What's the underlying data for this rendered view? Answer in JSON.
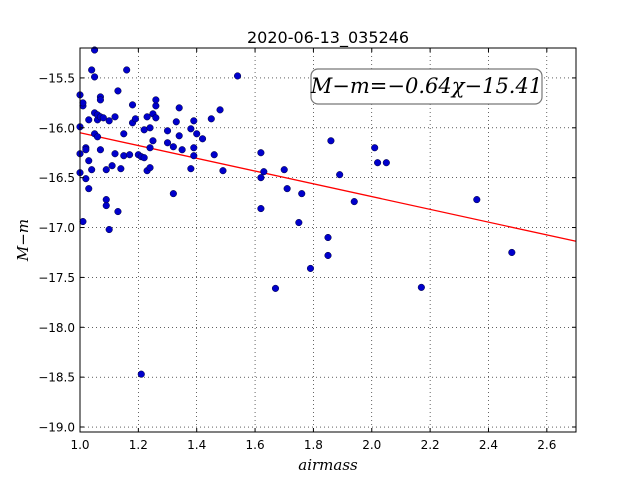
{
  "chart_data": {
    "type": "scatter",
    "title": "2020-06-13_035246",
    "xlabel": "airmass",
    "ylabel": "M−m",
    "xlim": [
      1.0,
      2.7
    ],
    "ylim": [
      -19.05,
      -15.2
    ],
    "x_ticks": [
      1.0,
      1.2,
      1.4,
      1.6,
      1.8,
      2.0,
      2.2,
      2.4,
      2.6
    ],
    "x_tick_labels": [
      "1.0",
      "1.2",
      "1.4",
      "1.6",
      "1.8",
      "2.0",
      "2.2",
      "2.4",
      "2.6"
    ],
    "y_ticks": [
      -15.5,
      -16.0,
      -16.5,
      -17.0,
      -17.5,
      -18.0,
      -18.5,
      -19.0
    ],
    "y_tick_labels": [
      "−15.5",
      "−16.0",
      "−16.5",
      "−17.0",
      "−17.5",
      "−18.0",
      "−18.5",
      "−19.0"
    ],
    "grid": true,
    "fit_line": {
      "slope": -0.64,
      "intercept": -15.41,
      "color": "#ff0000"
    },
    "annotation": "M−m=−0.64χ−15.41",
    "marker_color": "#0000cc",
    "points": [
      {
        "x": 1.0,
        "y": -15.67
      },
      {
        "x": 1.0,
        "y": -15.99
      },
      {
        "x": 1.0,
        "y": -16.26
      },
      {
        "x": 1.0,
        "y": -16.45
      },
      {
        "x": 1.01,
        "y": -15.78
      },
      {
        "x": 1.01,
        "y": -15.75
      },
      {
        "x": 1.01,
        "y": -16.94
      },
      {
        "x": 1.02,
        "y": -16.2
      },
      {
        "x": 1.02,
        "y": -16.22
      },
      {
        "x": 1.02,
        "y": -16.51
      },
      {
        "x": 1.03,
        "y": -16.33
      },
      {
        "x": 1.03,
        "y": -16.61
      },
      {
        "x": 1.03,
        "y": -15.92
      },
      {
        "x": 1.04,
        "y": -15.42
      },
      {
        "x": 1.04,
        "y": -16.42
      },
      {
        "x": 1.05,
        "y": -15.85
      },
      {
        "x": 1.05,
        "y": -16.06
      },
      {
        "x": 1.05,
        "y": -15.22
      },
      {
        "x": 1.05,
        "y": -15.49
      },
      {
        "x": 1.06,
        "y": -15.92
      },
      {
        "x": 1.06,
        "y": -16.09
      },
      {
        "x": 1.06,
        "y": -15.87
      },
      {
        "x": 1.07,
        "y": -15.69
      },
      {
        "x": 1.07,
        "y": -15.72
      },
      {
        "x": 1.07,
        "y": -15.89
      },
      {
        "x": 1.07,
        "y": -16.22
      },
      {
        "x": 1.08,
        "y": -15.9
      },
      {
        "x": 1.09,
        "y": -16.42
      },
      {
        "x": 1.09,
        "y": -16.78
      },
      {
        "x": 1.09,
        "y": -16.72
      },
      {
        "x": 1.1,
        "y": -15.93
      },
      {
        "x": 1.1,
        "y": -17.02
      },
      {
        "x": 1.11,
        "y": -16.38
      },
      {
        "x": 1.12,
        "y": -15.89
      },
      {
        "x": 1.12,
        "y": -16.26
      },
      {
        "x": 1.13,
        "y": -16.84
      },
      {
        "x": 1.13,
        "y": -15.63
      },
      {
        "x": 1.14,
        "y": -16.41
      },
      {
        "x": 1.15,
        "y": -16.06
      },
      {
        "x": 1.15,
        "y": -16.28
      },
      {
        "x": 1.16,
        "y": -15.42
      },
      {
        "x": 1.17,
        "y": -16.27
      },
      {
        "x": 1.18,
        "y": -15.77
      },
      {
        "x": 1.18,
        "y": -15.95
      },
      {
        "x": 1.19,
        "y": -15.91
      },
      {
        "x": 1.2,
        "y": -16.27
      },
      {
        "x": 1.21,
        "y": -18.47
      },
      {
        "x": 1.21,
        "y": -16.29
      },
      {
        "x": 1.22,
        "y": -16.02
      },
      {
        "x": 1.22,
        "y": -16.3
      },
      {
        "x": 1.23,
        "y": -16.43
      },
      {
        "x": 1.23,
        "y": -15.89
      },
      {
        "x": 1.24,
        "y": -16.0
      },
      {
        "x": 1.24,
        "y": -16.2
      },
      {
        "x": 1.24,
        "y": -16.4
      },
      {
        "x": 1.25,
        "y": -15.86
      },
      {
        "x": 1.25,
        "y": -16.13
      },
      {
        "x": 1.26,
        "y": -15.78
      },
      {
        "x": 1.26,
        "y": -15.72
      },
      {
        "x": 1.26,
        "y": -15.9
      },
      {
        "x": 1.3,
        "y": -16.15
      },
      {
        "x": 1.3,
        "y": -16.03
      },
      {
        "x": 1.32,
        "y": -16.66
      },
      {
        "x": 1.32,
        "y": -16.19
      },
      {
        "x": 1.33,
        "y": -15.94
      },
      {
        "x": 1.34,
        "y": -15.8
      },
      {
        "x": 1.34,
        "y": -16.08
      },
      {
        "x": 1.35,
        "y": -16.22
      },
      {
        "x": 1.38,
        "y": -16.41
      },
      {
        "x": 1.38,
        "y": -16.01
      },
      {
        "x": 1.39,
        "y": -15.93
      },
      {
        "x": 1.39,
        "y": -16.2
      },
      {
        "x": 1.39,
        "y": -16.28
      },
      {
        "x": 1.4,
        "y": -16.06
      },
      {
        "x": 1.42,
        "y": -16.11
      },
      {
        "x": 1.45,
        "y": -15.91
      },
      {
        "x": 1.46,
        "y": -16.27
      },
      {
        "x": 1.48,
        "y": -15.82
      },
      {
        "x": 1.49,
        "y": -16.43
      },
      {
        "x": 1.54,
        "y": -15.48
      },
      {
        "x": 1.62,
        "y": -16.25
      },
      {
        "x": 1.62,
        "y": -16.5
      },
      {
        "x": 1.62,
        "y": -16.81
      },
      {
        "x": 1.63,
        "y": -16.44
      },
      {
        "x": 1.67,
        "y": -17.61
      },
      {
        "x": 1.7,
        "y": -16.42
      },
      {
        "x": 1.71,
        "y": -16.61
      },
      {
        "x": 1.75,
        "y": -16.95
      },
      {
        "x": 1.76,
        "y": -16.66
      },
      {
        "x": 1.79,
        "y": -17.41
      },
      {
        "x": 1.85,
        "y": -17.1
      },
      {
        "x": 1.85,
        "y": -17.28
      },
      {
        "x": 1.86,
        "y": -16.13
      },
      {
        "x": 1.89,
        "y": -16.47
      },
      {
        "x": 1.94,
        "y": -16.74
      },
      {
        "x": 2.01,
        "y": -16.2
      },
      {
        "x": 2.02,
        "y": -16.35
      },
      {
        "x": 2.05,
        "y": -16.35
      },
      {
        "x": 2.17,
        "y": -17.6
      },
      {
        "x": 2.36,
        "y": -16.72
      },
      {
        "x": 2.48,
        "y": -17.25
      }
    ]
  }
}
